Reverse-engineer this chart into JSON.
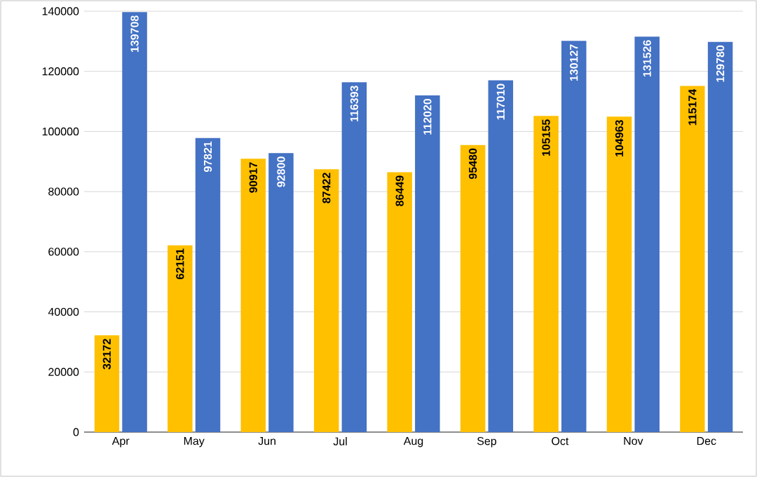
{
  "chart_data": {
    "type": "bar",
    "categories": [
      "Apr",
      "May",
      "Jun",
      "Jul",
      "Aug",
      "Sep",
      "Oct",
      "Nov",
      "Dec"
    ],
    "series": [
      {
        "color": "#ffc000",
        "values": [
          32172,
          62151,
          90917,
          87422,
          86449,
          95480,
          105155,
          104963,
          115174
        ]
      },
      {
        "color": "#4472c4",
        "values": [
          139708,
          97821,
          92800,
          116393,
          112020,
          117010,
          130127,
          131526,
          129780
        ]
      }
    ],
    "ylim": [
      0,
      140000
    ],
    "yticks": [
      0,
      20000,
      40000,
      60000,
      80000,
      100000,
      120000,
      140000
    ],
    "grid": "y",
    "data_labels": true
  }
}
